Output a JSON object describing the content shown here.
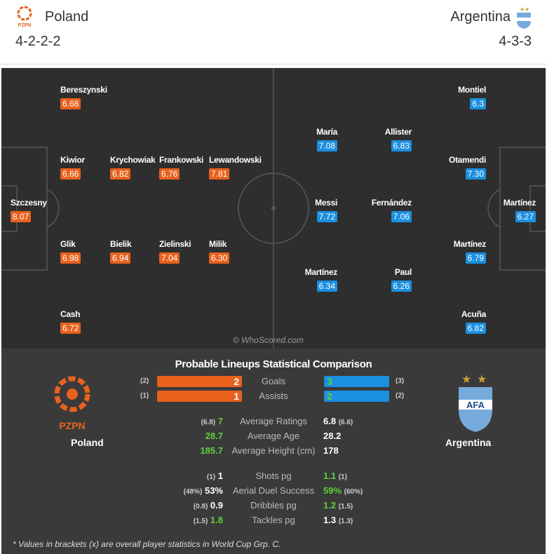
{
  "home": {
    "name": "Poland",
    "formation": "4-2-2-2",
    "logo_text": "PZPN",
    "color": "#e8611d"
  },
  "away": {
    "name": "Argentina",
    "formation": "4-3-3",
    "logo_text": "AFA",
    "color": "#1b8fe0"
  },
  "home_players": [
    {
      "name": "Bereszynski",
      "rating": "6.68"
    },
    {
      "name": "Kiwior",
      "rating": "6.66"
    },
    {
      "name": "Krychowiak",
      "rating": "6.82"
    },
    {
      "name": "Frankowski",
      "rating": "6.76"
    },
    {
      "name": "Lewandowski",
      "rating": "7.81"
    },
    {
      "name": "Szczesny",
      "rating": "8.07"
    },
    {
      "name": "Glik",
      "rating": "6.98"
    },
    {
      "name": "Bielik",
      "rating": "6.94"
    },
    {
      "name": "Zielinski",
      "rating": "7.04"
    },
    {
      "name": "Milik",
      "rating": "6.30"
    },
    {
      "name": "Cash",
      "rating": "6.72"
    }
  ],
  "away_players": [
    {
      "name": "Montiel",
      "rating": "6.3"
    },
    {
      "name": "María",
      "rating": "7.08"
    },
    {
      "name": "Allister",
      "rating": "6.83"
    },
    {
      "name": "Otamendi",
      "rating": "7.30"
    },
    {
      "name": "Messi",
      "rating": "7.72"
    },
    {
      "name": "Fernández",
      "rating": "7.06"
    },
    {
      "name": "Martínez",
      "rating": "6.27"
    },
    {
      "name": "Martínez",
      "rating": "6.79"
    },
    {
      "name": "Martínez",
      "rating": "6.34"
    },
    {
      "name": "Paul",
      "rating": "6.26"
    },
    {
      "name": "Acuña",
      "rating": "6.82"
    }
  ],
  "watermark": "© WhoScored.com",
  "comparison": {
    "title": "Probable Lineups Statistical Comparison",
    "bars": [
      {
        "label": "Goals",
        "home": "2",
        "home_overall": "(2)",
        "away": "3",
        "away_overall": "(3)"
      },
      {
        "label": "Assists",
        "home": "1",
        "home_overall": "(1)",
        "away": "2",
        "away_overall": "(2)"
      }
    ],
    "rows": [
      {
        "label": "Average Ratings",
        "home": "7",
        "home_overall": "(6.8)",
        "away": "6.8",
        "away_overall": "(6.6)",
        "better": "home"
      },
      {
        "label": "Average Age",
        "home": "28.7",
        "home_overall": "",
        "away": "28.2",
        "away_overall": "",
        "better": "home"
      },
      {
        "label": "Average Height (cm)",
        "home": "185.7",
        "home_overall": "",
        "away": "178",
        "away_overall": "",
        "better": "home"
      },
      {
        "label": "Shots pg",
        "home": "1",
        "home_overall": "(1)",
        "away": "1.1",
        "away_overall": "(1)",
        "better": "away"
      },
      {
        "label": "Aerial Duel Success",
        "home": "53%",
        "home_overall": "(48%)",
        "away": "59%",
        "away_overall": "(60%)",
        "better": "away"
      },
      {
        "label": "Dribbles pg",
        "home": "0.9",
        "home_overall": "(0.8)",
        "away": "1.2",
        "away_overall": "(1.5)",
        "better": "away"
      },
      {
        "label": "Tackles pg",
        "home": "1.8",
        "home_overall": "(1.5)",
        "away": "1.3",
        "away_overall": "(1.3)",
        "better": "home"
      }
    ],
    "note": "* Values in brackets (x) are overall player statistics in World Cup Grp. C."
  }
}
